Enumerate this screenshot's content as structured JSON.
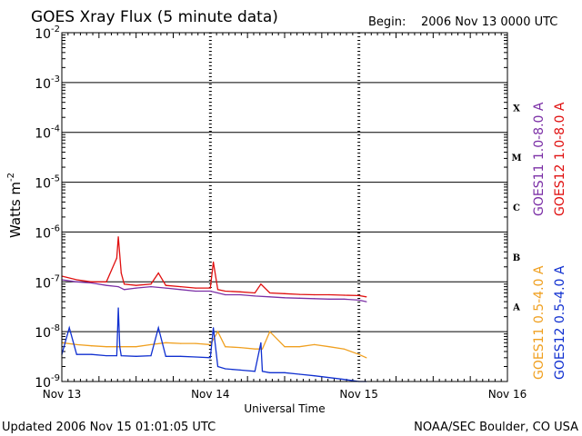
{
  "chart_data": {
    "type": "line",
    "title": "GOES Xray Flux (5 minute data)",
    "begin_label": "Begin:",
    "begin_value": "2006 Nov 13 0000 UTC",
    "xlabel": "Universal Time",
    "ylabel": "Watts m",
    "ylabel_exp": "-2",
    "x_ticks": [
      "Nov 13",
      "Nov 14",
      "Nov 15",
      "Nov 16"
    ],
    "xlim": [
      0,
      3
    ],
    "ylim": [
      1e-09,
      0.01
    ],
    "y_scale": "log",
    "y_ticks": [
      {
        "base": "10",
        "exp": "-2",
        "value": 0.01
      },
      {
        "base": "10",
        "exp": "-3",
        "value": 0.001
      },
      {
        "base": "10",
        "exp": "-4",
        "value": 0.0001
      },
      {
        "base": "10",
        "exp": "-5",
        "value": 1e-05
      },
      {
        "base": "10",
        "exp": "-6",
        "value": 1e-06
      },
      {
        "base": "10",
        "exp": "-7",
        "value": 1e-07
      },
      {
        "base": "10",
        "exp": "-8",
        "value": 1e-08
      },
      {
        "base": "10",
        "exp": "-9",
        "value": 1e-09
      }
    ],
    "flare_classes": [
      {
        "label": "X",
        "lower": 0.0001
      },
      {
        "label": "M",
        "lower": 1e-05
      },
      {
        "label": "C",
        "lower": 1e-06
      },
      {
        "label": "B",
        "lower": 1e-07
      },
      {
        "label": "A",
        "lower": 1e-08
      }
    ],
    "grid": "horizontal lines at each decade; dashed vertical day markers",
    "legend_position": "right",
    "series": [
      {
        "name": "GOES11 1.0-8.0 A",
        "color": "#7b2fa6",
        "x": [
          0,
          0.1,
          0.2,
          0.3,
          0.38,
          0.42,
          0.5,
          0.6,
          0.7,
          0.8,
          0.9,
          1.0,
          1.05,
          1.1,
          1.2,
          1.3,
          1.4,
          1.5,
          1.6,
          1.7,
          1.8,
          1.9,
          2.0,
          2.05
        ],
        "y": [
          1.1e-07,
          1e-07,
          9.5e-08,
          8.5e-08,
          8e-08,
          7e-08,
          7.5e-08,
          8e-08,
          7.5e-08,
          7e-08,
          6.5e-08,
          6.5e-08,
          6e-08,
          5.5e-08,
          5.5e-08,
          5.2e-08,
          5e-08,
          4.8e-08,
          4.7e-08,
          4.6e-08,
          4.5e-08,
          4.5e-08,
          4.3e-08,
          4e-08
        ]
      },
      {
        "name": "GOES12 1.0-8.0 A",
        "color": "#e01010",
        "x": [
          0,
          0.1,
          0.2,
          0.3,
          0.37,
          0.38,
          0.4,
          0.42,
          0.5,
          0.6,
          0.65,
          0.7,
          0.8,
          0.9,
          1.0,
          1.02,
          1.05,
          1.1,
          1.2,
          1.3,
          1.34,
          1.4,
          1.5,
          1.6,
          1.7,
          1.8,
          1.9,
          2.0,
          2.05
        ],
        "y": [
          1.3e-07,
          1.1e-07,
          1e-07,
          1e-07,
          3e-07,
          8e-07,
          1.5e-07,
          9e-08,
          8.5e-08,
          9e-08,
          1.5e-07,
          8.5e-08,
          8e-08,
          7.5e-08,
          7.5e-08,
          2.5e-07,
          7e-08,
          6.5e-08,
          6.3e-08,
          6e-08,
          9e-08,
          6e-08,
          5.8e-08,
          5.6e-08,
          5.5e-08,
          5.5e-08,
          5.4e-08,
          5.3e-08,
          5e-08
        ]
      },
      {
        "name": "GOES11 0.5-4.0 A",
        "color": "#f0a020",
        "x": [
          0,
          0.1,
          0.2,
          0.3,
          0.38,
          0.4,
          0.5,
          0.6,
          0.7,
          0.8,
          0.9,
          1.0,
          1.05,
          1.1,
          1.2,
          1.3,
          1.35,
          1.4,
          1.5,
          1.6,
          1.7,
          1.8,
          1.9,
          2.0,
          2.05
        ],
        "y": [
          6e-09,
          5.5e-09,
          5.2e-09,
          5e-09,
          5e-09,
          5e-09,
          5e-09,
          5.5e-09,
          6e-09,
          5.8e-09,
          5.8e-09,
          5.5e-09,
          1e-08,
          5e-09,
          4.8e-09,
          4.5e-09,
          4.5e-09,
          1e-08,
          5e-09,
          5e-09,
          5.5e-09,
          5e-09,
          4.5e-09,
          3.5e-09,
          3e-09
        ]
      },
      {
        "name": "GOES12 0.5-4.0 A",
        "color": "#1030d0",
        "x": [
          0,
          0.05,
          0.1,
          0.2,
          0.3,
          0.37,
          0.38,
          0.39,
          0.4,
          0.5,
          0.6,
          0.65,
          0.7,
          0.8,
          0.9,
          1.0,
          1.02,
          1.05,
          1.1,
          1.2,
          1.3,
          1.34,
          1.35,
          1.4,
          1.5,
          1.6,
          1.7,
          1.8,
          1.9,
          2.0,
          2.05
        ],
        "y": [
          3.5e-09,
          1.2e-08,
          3.5e-09,
          3.5e-09,
          3.3e-09,
          3.3e-09,
          3e-08,
          5e-09,
          3.3e-09,
          3.2e-09,
          3.3e-09,
          1.2e-08,
          3.2e-09,
          3.2e-09,
          3.1e-09,
          3e-09,
          1.2e-08,
          2e-09,
          1.8e-09,
          1.7e-09,
          1.6e-09,
          6e-09,
          1.6e-09,
          1.5e-09,
          1.5e-09,
          1.4e-09,
          1.3e-09,
          1.2e-09,
          1.1e-09,
          1e-09,
          1e-09
        ]
      }
    ]
  },
  "footer": {
    "updated": "Updated 2006 Nov 15 01:01:05 UTC",
    "source": "NOAA/SEC Boulder, CO USA"
  }
}
